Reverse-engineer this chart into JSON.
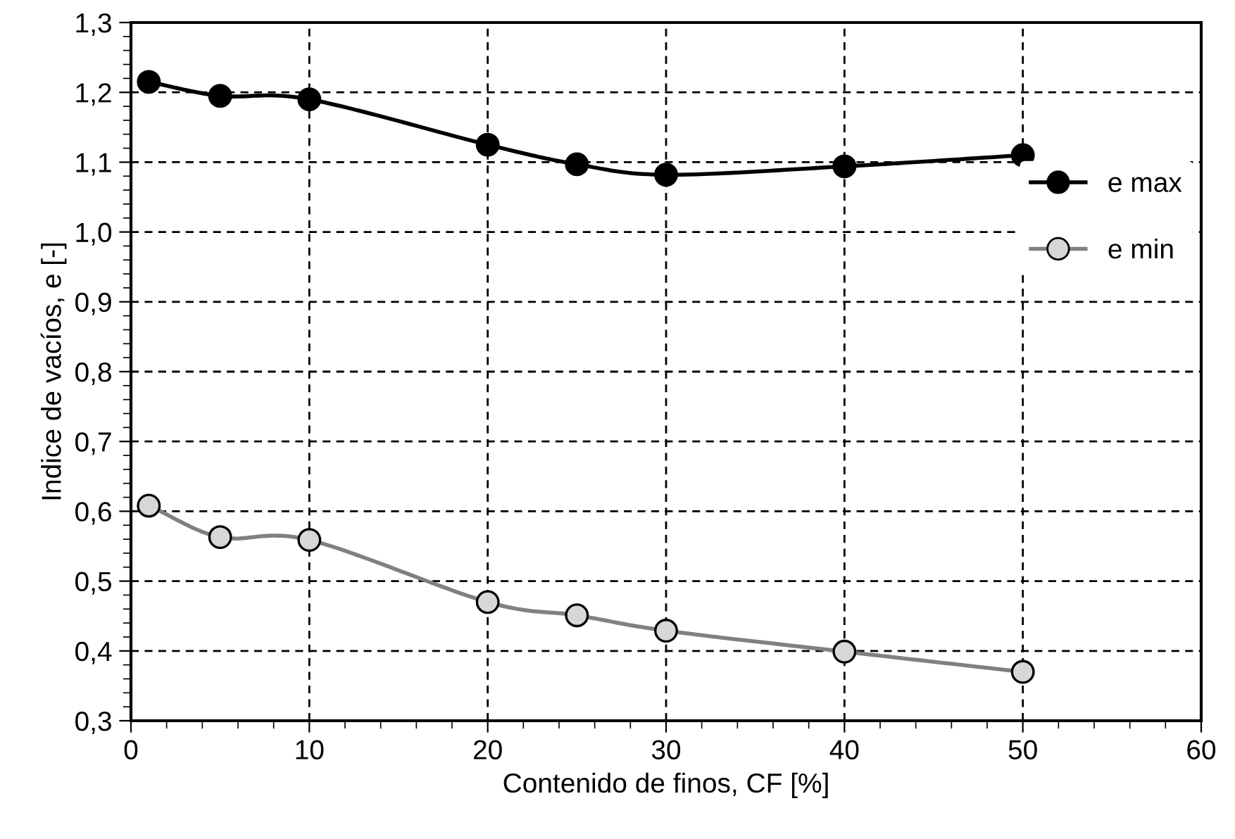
{
  "chart_data": {
    "type": "line",
    "xlabel": "Contenido de finos, CF [%]",
    "ylabel": "Indice de vacíos, e [-]",
    "x": [
      1,
      5,
      10,
      20,
      25,
      30,
      40,
      50
    ],
    "series": [
      {
        "name": "e max",
        "color": "#000000",
        "values": [
          1.215,
          1.195,
          1.19,
          1.125,
          1.097,
          1.082,
          1.094,
          1.11
        ]
      },
      {
        "name": "e min",
        "color": "#808080",
        "values": [
          0.608,
          0.563,
          0.559,
          0.47,
          0.451,
          0.429,
          0.399,
          0.37
        ]
      }
    ],
    "xlim": [
      0,
      60
    ],
    "xticks": [
      0,
      10,
      20,
      30,
      40,
      50,
      60
    ],
    "ylim": [
      0.3,
      1.3
    ],
    "yticks": [
      {
        "value": 0.3,
        "label": "0,3"
      },
      {
        "value": 0.4,
        "label": "0,4"
      },
      {
        "value": 0.5,
        "label": "0,5"
      },
      {
        "value": 0.6,
        "label": "0,6"
      },
      {
        "value": 0.7,
        "label": "0,7"
      },
      {
        "value": 0.8,
        "label": "0,8"
      },
      {
        "value": 0.9,
        "label": "0,9"
      },
      {
        "value": 1.0,
        "label": "1,0"
      },
      {
        "value": 1.1,
        "label": "1,1"
      },
      {
        "value": 1.2,
        "label": "1,2"
      },
      {
        "value": 1.3,
        "label": "1,3"
      }
    ],
    "grid": true,
    "legend": "right",
    "marker": "circle",
    "line_style": "solid"
  }
}
